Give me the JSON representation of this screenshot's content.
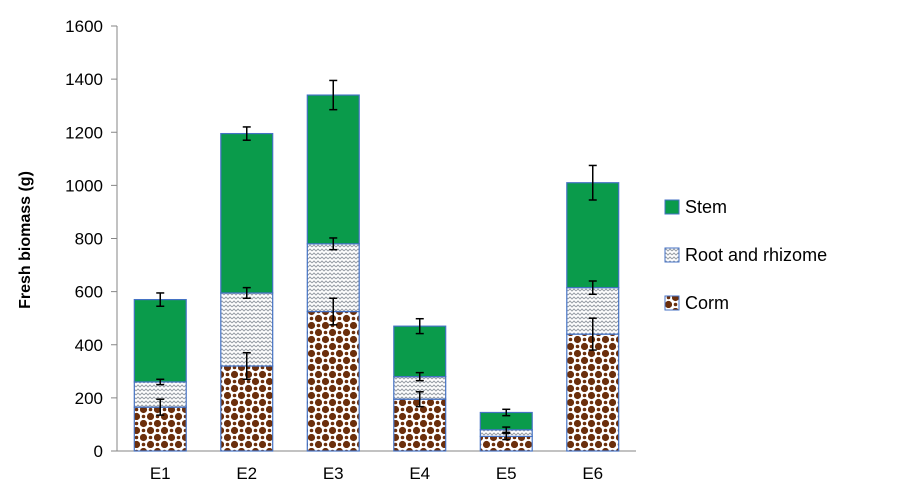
{
  "chart_data": {
    "type": "bar",
    "stacked": true,
    "title": "",
    "xlabel": "",
    "ylabel": "Fresh biomass (g)",
    "ylim": [
      0,
      1600
    ],
    "yticks": [
      0,
      200,
      400,
      600,
      800,
      1000,
      1200,
      1400,
      1600
    ],
    "grid": false,
    "legend_position": "right",
    "categories": [
      "E1",
      "E2",
      "E3",
      "E4",
      "E5",
      "E6"
    ],
    "series": [
      {
        "name": "Corm",
        "values": [
          165,
          320,
          525,
          195,
          55,
          440
        ],
        "error": [
          30,
          50,
          50,
          28,
          12,
          60
        ],
        "color": "#6b2f0c",
        "pattern": "dots"
      },
      {
        "name": "Root and rhizome",
        "values": [
          95,
          275,
          255,
          85,
          25,
          175
        ],
        "error": [
          10,
          20,
          22,
          15,
          10,
          25
        ],
        "color": "#9aa8be",
        "pattern": "zigzag"
      },
      {
        "name": "Stem",
        "values": [
          310,
          600,
          560,
          190,
          65,
          395
        ],
        "error": [
          25,
          25,
          55,
          28,
          12,
          65
        ],
        "color": "#0a9b4b",
        "pattern": "solid"
      }
    ]
  }
}
